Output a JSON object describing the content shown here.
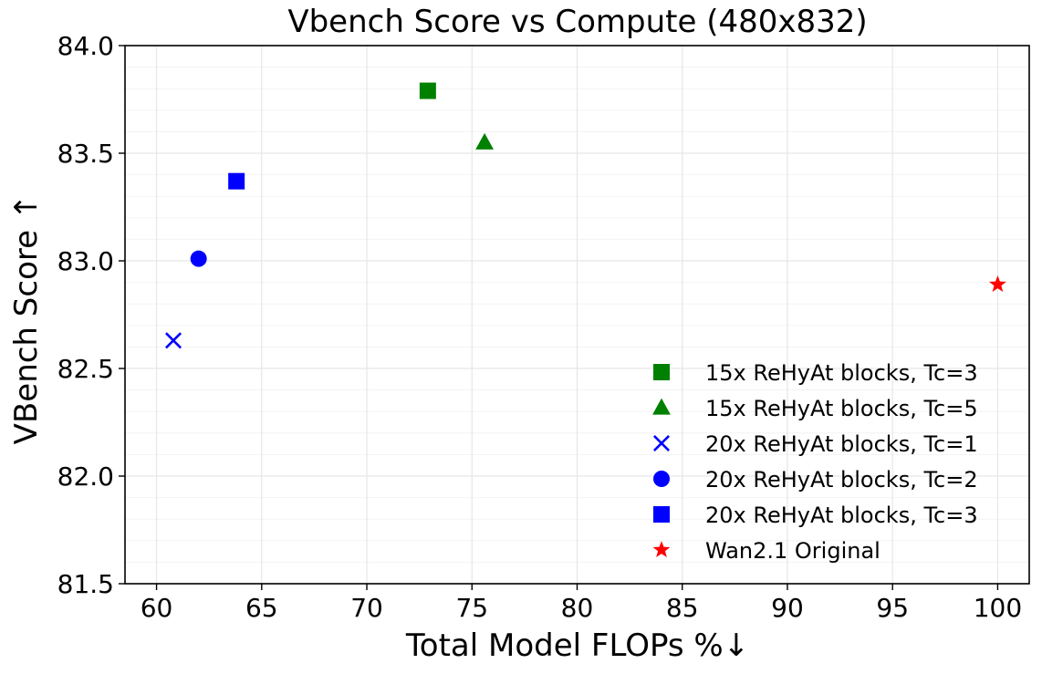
{
  "chart_data": {
    "type": "scatter",
    "title": "Vbench Score vs Compute (480x832)",
    "xlabel": "Total Model FLOPs %↓",
    "ylabel": "VBench Score ↑",
    "xlim": [
      58.5,
      101.5
    ],
    "ylim": [
      81.5,
      84.0
    ],
    "xticks": [
      "60",
      "65",
      "70",
      "75",
      "80",
      "85",
      "90",
      "95",
      "100"
    ],
    "yticks": [
      "81.5",
      "82.0",
      "82.5",
      "83.0",
      "83.5",
      "84.0"
    ],
    "grid": true,
    "legend_position": "lower-right",
    "series": [
      {
        "name": "15x ReHyAt blocks, Tc=3",
        "marker": "square",
        "color": "#008000",
        "points": [
          {
            "x": 72.9,
            "y": 83.79
          }
        ]
      },
      {
        "name": "15x ReHyAt blocks, Tc=5",
        "marker": "triangle",
        "color": "#008000",
        "points": [
          {
            "x": 75.6,
            "y": 83.55
          }
        ]
      },
      {
        "name": "20x ReHyAt blocks, Tc=1",
        "marker": "x",
        "color": "#0000ff",
        "points": [
          {
            "x": 60.8,
            "y": 82.63
          }
        ]
      },
      {
        "name": "20x ReHyAt blocks, Tc=2",
        "marker": "circle",
        "color": "#0000ff",
        "points": [
          {
            "x": 62.0,
            "y": 83.01
          }
        ]
      },
      {
        "name": "20x ReHyAt blocks, Tc=3",
        "marker": "square",
        "color": "#0000ff",
        "points": [
          {
            "x": 63.8,
            "y": 83.37
          }
        ]
      },
      {
        "name": "Wan2.1 Original",
        "marker": "star",
        "color": "#ff0000",
        "points": [
          {
            "x": 100.0,
            "y": 82.89
          }
        ]
      }
    ]
  }
}
